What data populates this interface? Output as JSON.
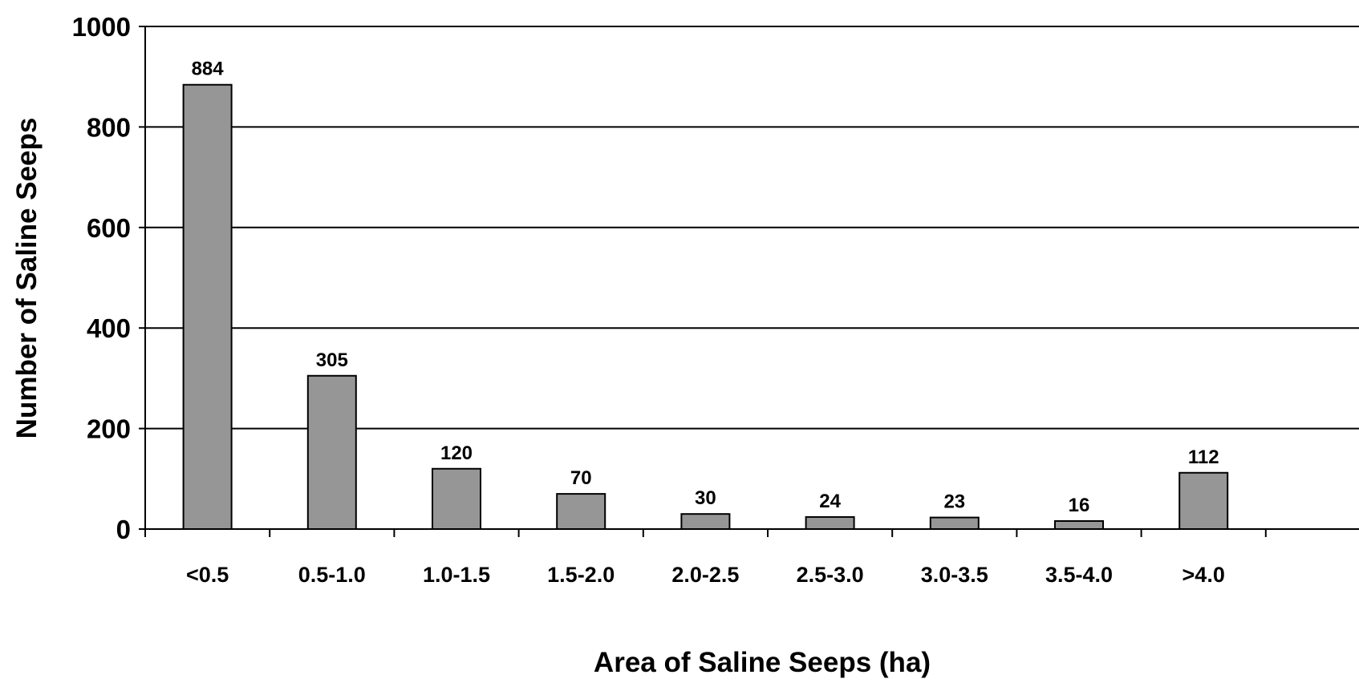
{
  "chart_data": {
    "type": "bar",
    "title": "",
    "xlabel": "Area of Saline Seeps (ha)",
    "ylabel": "Number of Saline Seeps",
    "categories": [
      "<0.5",
      "0.5-1.0",
      "1.0-1.5",
      "1.5-2.0",
      "2.0-2.5",
      "2.5-3.0",
      "3.0-3.5",
      "3.5-4.0",
      ">4.0"
    ],
    "values": [
      884,
      305,
      120,
      70,
      30,
      24,
      23,
      16,
      112
    ],
    "data_labels": [
      "884",
      "305",
      "120",
      "70",
      "30",
      "24",
      "23",
      "16",
      "112"
    ],
    "ylim": [
      0,
      1000
    ],
    "yticks": [
      0,
      200,
      400,
      600,
      800,
      1000
    ],
    "ytick_labels": [
      "0",
      "200",
      "400",
      "600",
      "800",
      "1000"
    ],
    "grid": "horizontal",
    "legend": "none",
    "colors": {
      "bar_fill": "#969696",
      "bar_stroke": "#000000",
      "gridline": "#000000",
      "background": "#ffffff"
    }
  }
}
